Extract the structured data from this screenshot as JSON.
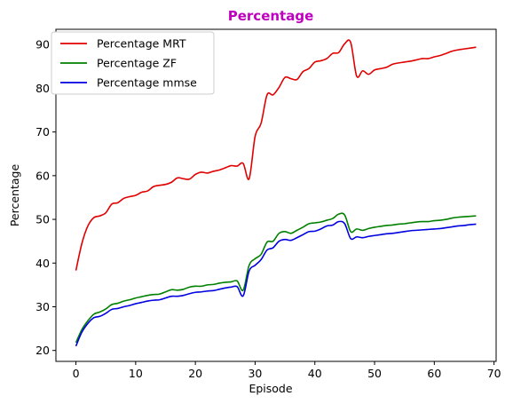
{
  "chart_data": {
    "type": "line",
    "title": "Percentage",
    "title_color": "#c000c0",
    "xlabel": "Episode",
    "ylabel": "Percentage",
    "xlim": [
      -3.35,
      70.35
    ],
    "ylim": [
      17.5,
      93.5
    ],
    "xticks": [
      0,
      10,
      20,
      30,
      40,
      50,
      60,
      70
    ],
    "yticks": [
      20,
      30,
      40,
      50,
      60,
      70,
      80,
      90
    ],
    "grid": false,
    "legend_position": "upper-left",
    "x": [
      0,
      1,
      2,
      3,
      4,
      5,
      6,
      7,
      8,
      9,
      10,
      11,
      12,
      13,
      14,
      15,
      16,
      17,
      18,
      19,
      20,
      21,
      22,
      23,
      24,
      25,
      26,
      27,
      28,
      29,
      30,
      31,
      32,
      33,
      34,
      35,
      36,
      37,
      38,
      39,
      40,
      41,
      42,
      43,
      44,
      45,
      46,
      47,
      48,
      49,
      50,
      51,
      52,
      53,
      54,
      55,
      56,
      57,
      58,
      59,
      60,
      61,
      62,
      63,
      64,
      65,
      66,
      67
    ],
    "series": [
      {
        "name": "Percentage MRT",
        "color": "#e00000",
        "values": [
          38.3,
          44.5,
          48.5,
          50.4,
          50.8,
          51.5,
          53.5,
          53.8,
          54.8,
          55.2,
          55.5,
          56.2,
          56.5,
          57.5,
          57.8,
          58.0,
          58.5,
          59.5,
          59.3,
          59.2,
          60.3,
          60.8,
          60.6,
          61.0,
          61.3,
          61.8,
          62.3,
          62.2,
          62.8,
          59.3,
          69.0,
          72.0,
          78.5,
          78.5,
          80.2,
          82.5,
          82.2,
          82.0,
          83.8,
          84.5,
          86.0,
          86.3,
          86.8,
          88.0,
          88.2,
          90.2,
          90.5,
          82.8,
          84.0,
          83.2,
          84.2,
          84.5,
          84.8,
          85.5,
          85.8,
          86.0,
          86.2,
          86.5,
          86.8,
          86.8,
          87.2,
          87.5,
          88.0,
          88.5,
          88.8,
          89.0,
          89.2,
          89.4
        ]
      },
      {
        "name": "Percentage ZF",
        "color": "#008000",
        "values": [
          21.8,
          24.8,
          26.8,
          28.3,
          28.8,
          29.5,
          30.5,
          30.8,
          31.3,
          31.6,
          32.0,
          32.3,
          32.6,
          32.8,
          32.9,
          33.4,
          33.9,
          33.8,
          34.0,
          34.5,
          34.7,
          34.7,
          35.0,
          35.1,
          35.4,
          35.6,
          35.7,
          35.9,
          33.8,
          39.5,
          41.0,
          42.0,
          44.8,
          45.0,
          46.8,
          47.2,
          46.8,
          47.5,
          48.2,
          49.0,
          49.2,
          49.4,
          49.8,
          50.2,
          51.2,
          51.0,
          47.2,
          47.8,
          47.5,
          47.9,
          48.2,
          48.4,
          48.6,
          48.7,
          48.9,
          49.0,
          49.2,
          49.4,
          49.5,
          49.5,
          49.7,
          49.8,
          50.0,
          50.3,
          50.5,
          50.6,
          50.7,
          50.8
        ]
      },
      {
        "name": "Percentage mmse",
        "color": "#0000e0",
        "values": [
          21.0,
          24.2,
          26.2,
          27.5,
          27.8,
          28.5,
          29.4,
          29.6,
          30.0,
          30.3,
          30.7,
          31.0,
          31.3,
          31.5,
          31.6,
          32.0,
          32.4,
          32.4,
          32.6,
          33.0,
          33.3,
          33.4,
          33.6,
          33.7,
          34.0,
          34.3,
          34.5,
          34.6,
          32.5,
          38.2,
          39.5,
          40.8,
          43.0,
          43.5,
          45.0,
          45.4,
          45.2,
          45.8,
          46.5,
          47.2,
          47.3,
          47.8,
          48.5,
          48.7,
          49.5,
          49.0,
          45.6,
          46.0,
          45.8,
          46.1,
          46.3,
          46.5,
          46.7,
          46.8,
          47.0,
          47.2,
          47.4,
          47.5,
          47.6,
          47.7,
          47.8,
          47.9,
          48.1,
          48.3,
          48.5,
          48.6,
          48.8,
          48.9
        ]
      }
    ]
  }
}
